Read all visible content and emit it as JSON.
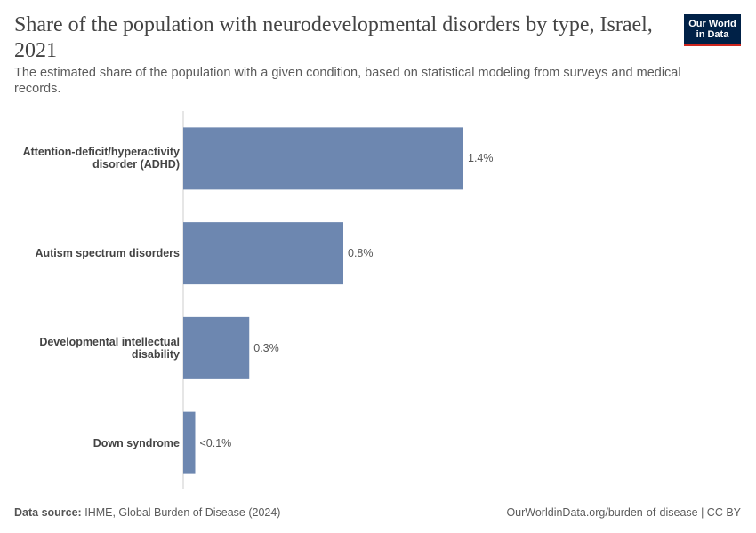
{
  "chart_data": {
    "type": "bar",
    "orientation": "horizontal",
    "title": "Share of the population with neurodevelopmental disorders by type, Israel, 2021",
    "subtitle": "The estimated share of the population with a given condition, based on statistical modeling from surveys and medical records.",
    "categories": [
      "Attention-deficit/hyperactivity disorder (ADHD)",
      "Autism spectrum disorders",
      "Developmental intellectual disability",
      "Down syndrome"
    ],
    "values": [
      1.4,
      0.8,
      0.33,
      0.06
    ],
    "value_labels": [
      "1.4%",
      "0.8%",
      "0.3%",
      "<0.1%"
    ],
    "color": "#6d87b0",
    "source_label": "Data source:",
    "source": "IHME, Global Burden of Disease (2024)",
    "license": "OurWorldinData.org/burden-of-disease | CC BY",
    "logo": [
      "Our World",
      "in Data"
    ]
  }
}
